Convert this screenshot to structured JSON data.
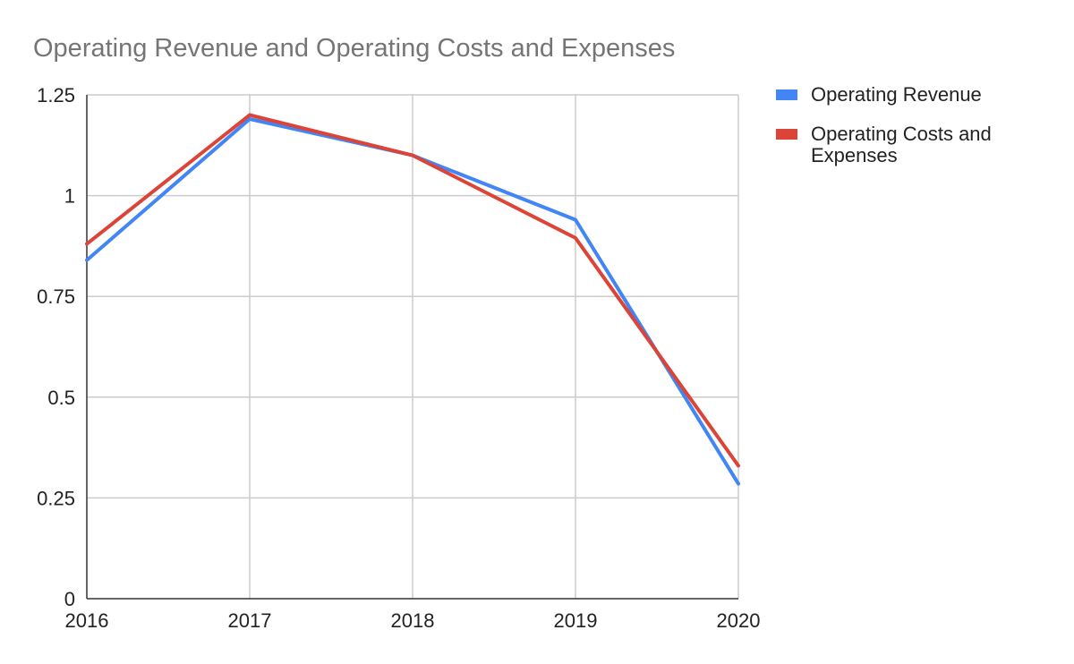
{
  "chart_data": {
    "type": "line",
    "title": "Operating Revenue and Operating Costs and Expenses",
    "xlabel": "",
    "ylabel": "",
    "categories": [
      "2016",
      "2017",
      "2018",
      "2019",
      "2020"
    ],
    "ylim": [
      0,
      1.25
    ],
    "yticks": [
      0,
      0.25,
      0.5,
      0.75,
      1,
      1.25
    ],
    "ytick_labels": [
      "0",
      "0.25",
      "0.5",
      "0.75",
      "1",
      "1.25"
    ],
    "grid": true,
    "legend_position": "right",
    "series": [
      {
        "name": "Operating Revenue",
        "legend_lines": [
          "Operating Revenue"
        ],
        "color": "#4285f4",
        "values": [
          0.84,
          1.19,
          1.1,
          0.94,
          0.285
        ]
      },
      {
        "name": "Operating Costs and Expenses",
        "legend_lines": [
          "Operating Costs and",
          "Expenses"
        ],
        "color": "#db4437",
        "values": [
          0.88,
          1.2,
          1.1,
          0.895,
          0.33
        ]
      }
    ]
  }
}
